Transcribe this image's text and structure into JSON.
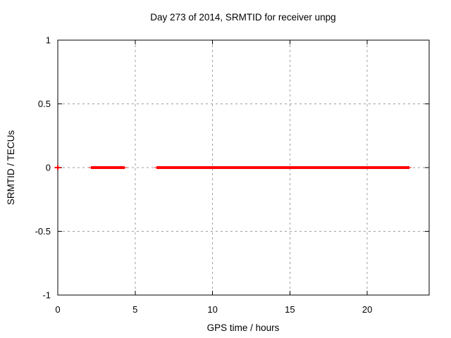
{
  "title": "Day 273 of 2014, SRMTID for receiver unpg",
  "colors": {
    "background": "#ffffff",
    "border": "#000000",
    "grid": "#9e9e9e",
    "text": "#000000",
    "series": "#ff0000"
  },
  "chart_data": {
    "type": "line",
    "title": "Day 273 of 2014, SRMTID for receiver unpg",
    "xlabel": "GPS time / hours",
    "ylabel": "SRMTID / TECUs",
    "xlim": [
      0,
      24
    ],
    "ylim": [
      -1,
      1
    ],
    "grid": true,
    "legend": "none",
    "xticks": [
      {
        "value": 0,
        "label": "0"
      },
      {
        "value": 5,
        "label": "5"
      },
      {
        "value": 10,
        "label": "10"
      },
      {
        "value": 15,
        "label": "15"
      },
      {
        "value": 20,
        "label": "20"
      }
    ],
    "yticks": [
      {
        "value": 1,
        "label": "1"
      },
      {
        "value": 0.5,
        "label": "0.5"
      },
      {
        "value": 0,
        "label": "0"
      },
      {
        "value": -0.5,
        "label": "-0.5"
      },
      {
        "value": -1,
        "label": "-1"
      }
    ],
    "series": [
      {
        "name": "SRMTID",
        "color": "#ff0000",
        "constant_value": 0,
        "segments": [
          {
            "y": 0,
            "thick": [
              2.14,
              4.33
            ],
            "thin": [
              2.0,
              4.48
            ]
          },
          {
            "y": 0,
            "thick": [
              6.38,
              22.72
            ],
            "thin": [
              6.24,
              22.86
            ]
          }
        ],
        "isolated_points": [
          {
            "x": 0,
            "y": 0,
            "marker": "plus"
          }
        ]
      }
    ]
  }
}
